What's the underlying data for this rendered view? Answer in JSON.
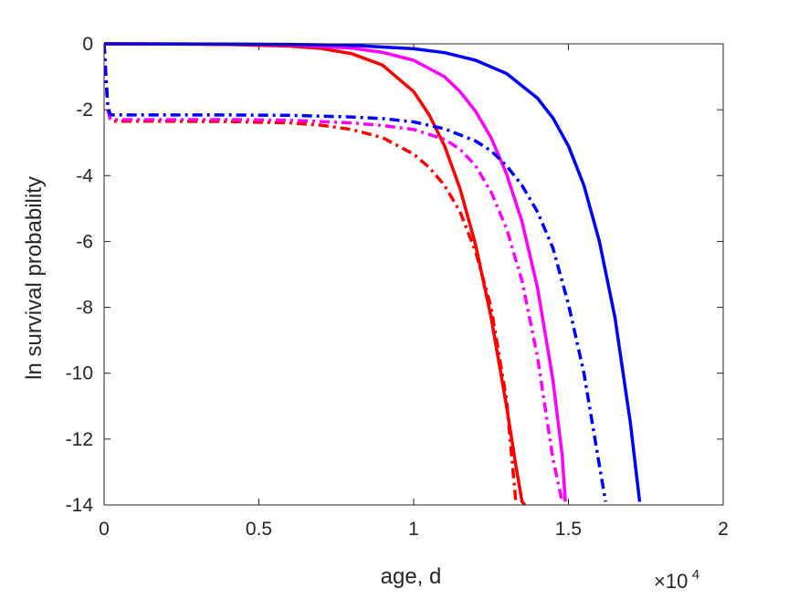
{
  "chart_data": {
    "type": "line",
    "title": "",
    "xlabel": "age, d",
    "ylabel": "ln survival probability",
    "x_multiplier": {
      "base": "×10",
      "exponent": "4"
    },
    "xlim": [
      0,
      20000
    ],
    "ylim": [
      -14,
      0
    ],
    "xticks": [
      0,
      5000,
      10000,
      15000,
      20000
    ],
    "xtick_labels": [
      "0",
      "0.5",
      "1",
      "1.5",
      "2"
    ],
    "yticks": [
      0,
      -2,
      -4,
      -6,
      -8,
      -10,
      -12,
      -14
    ],
    "ytick_labels": [
      "0",
      "-2",
      "-4",
      "-6",
      "-8",
      "-10",
      "-12",
      "-14"
    ],
    "grid": false,
    "legend": "none",
    "series": [
      {
        "color": "#ff0000",
        "style": "solid",
        "x": [
          0,
          2000,
          4000,
          6000,
          7000,
          8000,
          9000,
          10000,
          10500,
          11000,
          11500,
          12000,
          12500,
          13000,
          13300,
          13500,
          13600
        ],
        "y": [
          0,
          -0.005,
          -0.02,
          -0.07,
          -0.14,
          -0.3,
          -0.65,
          -1.45,
          -2.15,
          -3.1,
          -4.4,
          -6.1,
          -8.3,
          -11.0,
          -12.8,
          -13.9,
          -14
        ]
      },
      {
        "color": "#ff00ff",
        "style": "solid",
        "x": [
          0,
          2000,
          4000,
          6000,
          8000,
          9000,
          10000,
          11000,
          11500,
          12000,
          12500,
          13000,
          13500,
          14000,
          14500,
          14800,
          14900
        ],
        "y": [
          0,
          -0.003,
          -0.01,
          -0.035,
          -0.13,
          -0.26,
          -0.5,
          -1.0,
          -1.45,
          -2.05,
          -2.85,
          -3.95,
          -5.4,
          -7.4,
          -10.2,
          -12.5,
          -13.9
        ]
      },
      {
        "color": "#0000ff",
        "style": "solid",
        "x": [
          0,
          2000,
          4000,
          6000,
          8000,
          10000,
          11000,
          12000,
          13000,
          14000,
          14500,
          15000,
          15500,
          16000,
          16500,
          17000,
          17300
        ],
        "y": [
          0,
          -0.002,
          -0.006,
          -0.017,
          -0.045,
          -0.15,
          -0.27,
          -0.5,
          -0.9,
          -1.65,
          -2.25,
          -3.1,
          -4.3,
          -6.0,
          -8.3,
          -11.5,
          -13.9
        ]
      },
      {
        "color": "#ff0000",
        "style": "dashdot",
        "x": [
          0,
          60,
          120,
          200,
          300,
          2000,
          4000,
          6000,
          7000,
          8000,
          9000,
          10000,
          10500,
          11000,
          11500,
          12000,
          12500,
          13000,
          13300
        ],
        "y": [
          0,
          -1.0,
          -2.0,
          -2.3,
          -2.35,
          -2.35,
          -2.36,
          -2.4,
          -2.47,
          -2.6,
          -2.85,
          -3.35,
          -3.75,
          -4.3,
          -5.1,
          -6.3,
          -8.0,
          -10.8,
          -13.9
        ]
      },
      {
        "color": "#ff00ff",
        "style": "dashdot",
        "x": [
          0,
          60,
          120,
          200,
          300,
          2000,
          4000,
          6000,
          8000,
          9000,
          10000,
          11000,
          11500,
          12000,
          12500,
          13000,
          13500,
          14000,
          14500,
          14800
        ],
        "y": [
          0,
          -1.0,
          -2.0,
          -2.28,
          -2.3,
          -2.3,
          -2.3,
          -2.32,
          -2.4,
          -2.48,
          -2.6,
          -2.9,
          -3.2,
          -3.7,
          -4.5,
          -5.6,
          -7.2,
          -9.5,
          -12.6,
          -13.9
        ]
      },
      {
        "color": "#0000ff",
        "style": "dashdot",
        "x": [
          0,
          60,
          120,
          200,
          300,
          2000,
          4000,
          6000,
          8000,
          9000,
          10000,
          11000,
          12000,
          12500,
          13000,
          13500,
          14000,
          14500,
          15000,
          15500,
          16000,
          16200
        ],
        "y": [
          0,
          -1.0,
          -1.9,
          -2.15,
          -2.16,
          -2.16,
          -2.16,
          -2.17,
          -2.22,
          -2.27,
          -2.37,
          -2.58,
          -2.95,
          -3.25,
          -3.7,
          -4.3,
          -5.1,
          -6.2,
          -7.9,
          -10.0,
          -12.8,
          -13.9
        ]
      }
    ]
  }
}
